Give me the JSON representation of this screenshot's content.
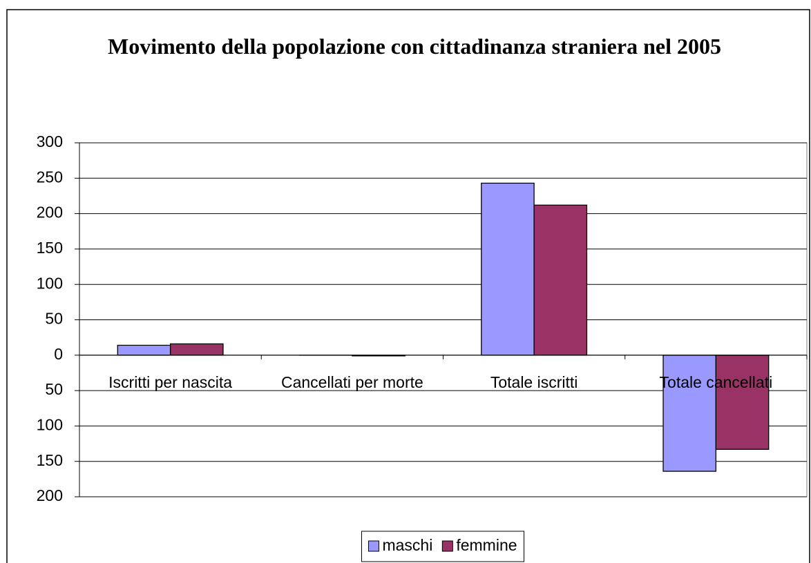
{
  "chart_data": {
    "type": "bar",
    "title": "Movimento della popolazione con cittadinanza straniera nel 2005",
    "categories": [
      "Iscritti per nascita",
      "Cancellati per morte",
      "Totale iscritti",
      "Totale cancellati"
    ],
    "series": [
      {
        "name": "maschi",
        "color": "#9999ff",
        "values": [
          14,
          0,
          243,
          -164
        ]
      },
      {
        "name": "femmine",
        "color": "#993366",
        "values": [
          16,
          -1,
          212,
          -133
        ]
      }
    ],
    "ylim": [
      -200,
      300
    ],
    "yticks": [
      {
        "value": -200,
        "label": "200"
      },
      {
        "value": -150,
        "label": "150"
      },
      {
        "value": -100,
        "label": "100"
      },
      {
        "value": -50,
        "label": "50"
      },
      0,
      50,
      100,
      150,
      200,
      250,
      300
    ],
    "negative_tick_color": "#ff0000",
    "grid": true,
    "legend": "bottom"
  }
}
